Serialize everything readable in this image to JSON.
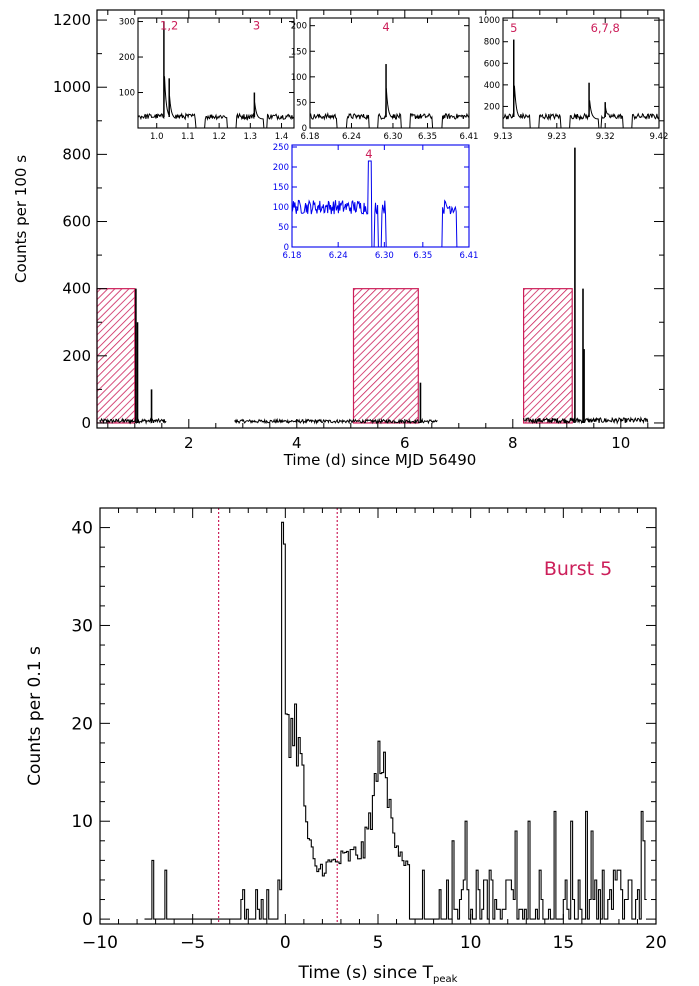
{
  "chart_data": [
    {
      "id": "top",
      "type": "line",
      "xlabel": "Time (d) since MJD 56490",
      "ylabel": "Counts per 100 s",
      "xlim": [
        0.3,
        10.8
      ],
      "ylim": [
        -15,
        1230
      ],
      "xticks": [
        2,
        4,
        6,
        8,
        10
      ],
      "yticks": [
        0,
        200,
        400,
        600,
        800,
        1000,
        1200
      ],
      "shaded_intervals": [
        [
          0.3,
          1.0
        ],
        [
          5.05,
          6.25
        ],
        [
          8.2,
          9.1
        ]
      ],
      "shade_height": 400,
      "shade_color": "#cc1f5a",
      "series_color": "#000000",
      "segments": [
        {
          "x0": 0.35,
          "x1": 1.58,
          "noise": 12
        },
        {
          "x0": 2.85,
          "x1": 6.6,
          "noise": 10
        },
        {
          "x0": 8.2,
          "x1": 10.5,
          "noise": 15
        }
      ],
      "peaks": [
        {
          "x": 1.02,
          "y": 400
        },
        {
          "x": 1.05,
          "y": 300
        },
        {
          "x": 1.31,
          "y": 100
        },
        {
          "x": 6.29,
          "y": 120
        },
        {
          "x": 9.15,
          "y": 820
        },
        {
          "x": 9.3,
          "y": 400
        },
        {
          "x": 9.32,
          "y": 220
        }
      ]
    },
    {
      "id": "inset1",
      "type": "line",
      "xticks": [
        1.0,
        1.1,
        1.2,
        1.3,
        1.4
      ],
      "xtick_labels": [
        "1.0",
        "1.1",
        "1.2",
        "1.3",
        "1.4"
      ],
      "xlim": [
        0.94,
        1.44
      ],
      "yticks": [
        100,
        200,
        300
      ],
      "ylim": [
        0,
        310
      ],
      "annotations": [
        {
          "text": "1,2",
          "x": 1.04,
          "y": 278
        },
        {
          "text": "3",
          "x": 1.32,
          "y": 278
        }
      ],
      "peaks": [
        {
          "x": 1.023,
          "y": 300
        },
        {
          "x": 1.04,
          "y": 140
        },
        {
          "x": 1.313,
          "y": 100
        }
      ]
    },
    {
      "id": "inset2",
      "type": "line",
      "xticks": [
        6.18,
        6.24,
        6.3,
        6.35,
        6.41
      ],
      "xtick_labels": [
        "6.18",
        "6.24",
        "6.30",
        "6.35",
        "6.41"
      ],
      "xlim": [
        6.18,
        6.41
      ],
      "yticks": [
        0,
        50,
        100,
        150,
        200
      ],
      "ylim": [
        0,
        215
      ],
      "annotations": [
        {
          "text": "4",
          "x": 6.29,
          "y": 190
        }
      ],
      "peaks": [
        {
          "x": 6.29,
          "y": 125
        }
      ]
    },
    {
      "id": "inset3",
      "type": "line",
      "xticks": [
        9.13,
        9.23,
        9.32,
        9.42
      ],
      "xtick_labels": [
        "9.13",
        "9.23",
        "9.32",
        "9.42"
      ],
      "xlim": [
        9.13,
        9.42
      ],
      "yticks": [
        200,
        400,
        600,
        800,
        1000
      ],
      "ylim": [
        0,
        1020
      ],
      "annotations": [
        {
          "text": "5",
          "x": 9.15,
          "y": 890
        },
        {
          "text": "6,7,8",
          "x": 9.32,
          "y": 890
        }
      ],
      "peaks": [
        {
          "x": 9.15,
          "y": 820
        },
        {
          "x": 9.29,
          "y": 420
        },
        {
          "x": 9.32,
          "y": 240
        }
      ]
    },
    {
      "id": "inset4",
      "type": "line",
      "color": "#0000ee",
      "xticks": [
        6.18,
        6.24,
        6.3,
        6.35,
        6.41
      ],
      "xtick_labels": [
        "6.18",
        "6.24",
        "6.30",
        "6.35",
        "6.41"
      ],
      "xlim": [
        6.18,
        6.41
      ],
      "yticks": [
        0,
        50,
        100,
        150,
        200,
        250
      ],
      "ylim": [
        0,
        255
      ],
      "annotations": [
        {
          "text": "4",
          "x": 6.28,
          "y": 222
        }
      ]
    },
    {
      "id": "bottom",
      "type": "line",
      "xlabel": "Time (s) since T",
      "xlabel_sub": "peak",
      "ylabel": "Counts per 0.1 s",
      "xlim": [
        -10,
        20
      ],
      "ylim": [
        -0.5,
        42
      ],
      "xticks": [
        -10,
        -5,
        0,
        5,
        10,
        15,
        20
      ],
      "yticks": [
        0,
        10,
        20,
        30,
        40
      ],
      "annotation": "Burst 5",
      "vlines": [
        -3.6,
        2.8
      ],
      "vline_color": "#cc1f5a",
      "range": [
        -7.6,
        19.4
      ],
      "profile": [
        {
          "x": -0.3,
          "y": 34
        },
        {
          "x": -0.15,
          "y": 40
        },
        {
          "x": 0,
          "y": 22
        },
        {
          "x": 0.3,
          "y": 19
        },
        {
          "x": 0.5,
          "y": 20
        },
        {
          "x": 0.8,
          "y": 16
        },
        {
          "x": 1.2,
          "y": 8
        },
        {
          "x": 1.6,
          "y": 5
        },
        {
          "x": 4.2,
          "y": 7
        },
        {
          "x": 4.7,
          "y": 12
        },
        {
          "x": 5.1,
          "y": 17.5
        },
        {
          "x": 5.5,
          "y": 12
        },
        {
          "x": 6.0,
          "y": 8
        },
        {
          "x": 6.6,
          "y": 5
        }
      ]
    }
  ]
}
